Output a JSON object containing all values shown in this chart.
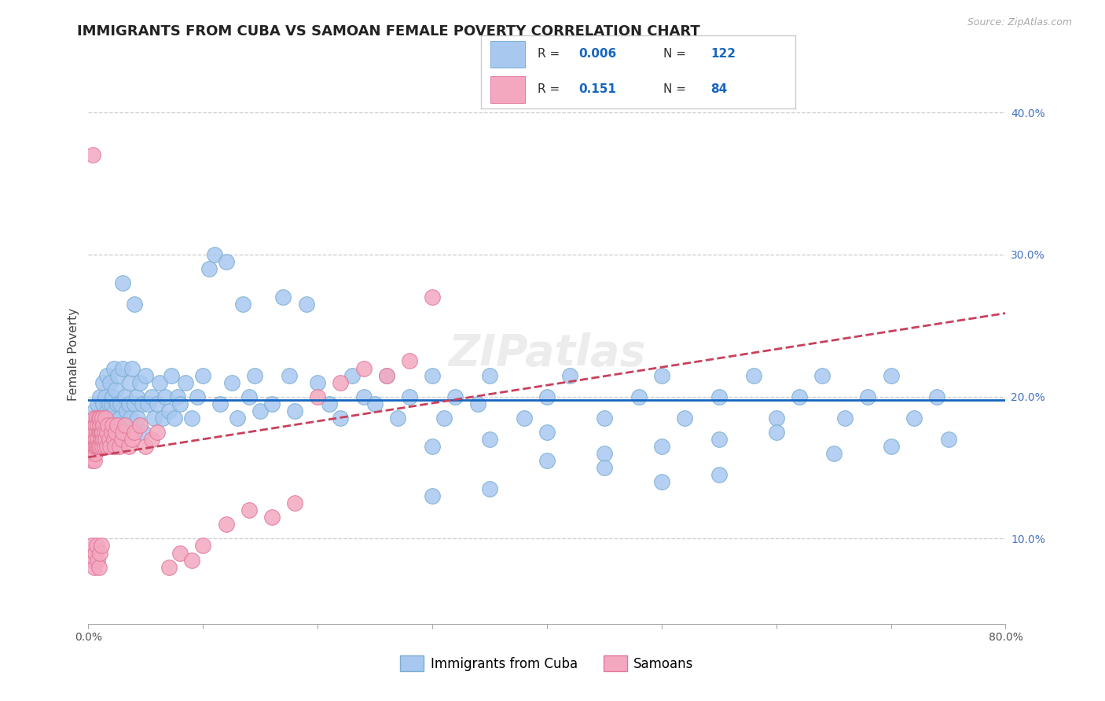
{
  "title": "IMMIGRANTS FROM CUBA VS SAMOAN FEMALE POVERTY CORRELATION CHART",
  "source_text": "Source: ZipAtlas.com",
  "ylabel": "Female Poverty",
  "xlim": [
    0.0,
    0.8
  ],
  "ylim": [
    0.04,
    0.42
  ],
  "xtick_vals": [
    0.0,
    0.1,
    0.2,
    0.3,
    0.4,
    0.5,
    0.6,
    0.7,
    0.8
  ],
  "xtick_labels": [
    "0.0%",
    "",
    "",
    "",
    "",
    "",
    "",
    "",
    "80.0%"
  ],
  "yticks_right": [
    0.1,
    0.2,
    0.3,
    0.4
  ],
  "ytick_right_labels": [
    "10.0%",
    "20.0%",
    "30.0%",
    "40.0%"
  ],
  "blue_dot_color": "#a8c8f0",
  "blue_dot_edge": "#7aaed0",
  "pink_dot_color": "#f4a8c0",
  "pink_dot_edge": "#e07898",
  "blue_trend_color": "#1565C0",
  "pink_trend_color": "#c8405c",
  "grid_color": "#cccccc",
  "title_color": "#222222",
  "title_fontsize": 13,
  "ylabel_fontsize": 11,
  "tick_fontsize": 10,
  "watermark": "ZIPatlas",
  "legend_r1": "0.006",
  "legend_n1": "122",
  "legend_r2": "0.151",
  "legend_n2": "84",
  "legend_label1": "Immigrants from Cuba",
  "legend_label2": "Samoans",
  "blue_x": [
    0.005,
    0.008,
    0.01,
    0.01,
    0.01,
    0.012,
    0.013,
    0.013,
    0.014,
    0.015,
    0.015,
    0.016,
    0.016,
    0.017,
    0.018,
    0.018,
    0.019,
    0.02,
    0.02,
    0.021,
    0.022,
    0.022,
    0.023,
    0.024,
    0.025,
    0.026,
    0.027,
    0.028,
    0.03,
    0.03,
    0.032,
    0.033,
    0.035,
    0.036,
    0.037,
    0.038,
    0.04,
    0.04,
    0.042,
    0.043,
    0.045,
    0.047,
    0.048,
    0.05,
    0.052,
    0.055,
    0.057,
    0.06,
    0.062,
    0.065,
    0.067,
    0.07,
    0.072,
    0.075,
    0.078,
    0.08,
    0.085,
    0.09,
    0.095,
    0.1,
    0.105,
    0.11,
    0.115,
    0.12,
    0.125,
    0.13,
    0.135,
    0.14,
    0.145,
    0.15,
    0.16,
    0.17,
    0.175,
    0.18,
    0.19,
    0.2,
    0.21,
    0.22,
    0.23,
    0.24,
    0.25,
    0.26,
    0.27,
    0.28,
    0.3,
    0.31,
    0.32,
    0.34,
    0.35,
    0.38,
    0.4,
    0.42,
    0.45,
    0.48,
    0.5,
    0.52,
    0.55,
    0.58,
    0.6,
    0.62,
    0.64,
    0.66,
    0.68,
    0.7,
    0.72,
    0.74,
    0.3,
    0.35,
    0.4,
    0.45,
    0.5,
    0.55,
    0.6,
    0.65,
    0.7,
    0.75,
    0.55,
    0.5,
    0.45,
    0.4,
    0.35,
    0.3
  ],
  "blue_y": [
    0.19,
    0.195,
    0.185,
    0.2,
    0.175,
    0.18,
    0.195,
    0.21,
    0.185,
    0.2,
    0.175,
    0.19,
    0.215,
    0.185,
    0.195,
    0.17,
    0.21,
    0.18,
    0.195,
    0.2,
    0.185,
    0.22,
    0.19,
    0.205,
    0.195,
    0.215,
    0.185,
    0.195,
    0.22,
    0.28,
    0.2,
    0.19,
    0.195,
    0.21,
    0.185,
    0.22,
    0.195,
    0.265,
    0.2,
    0.185,
    0.21,
    0.195,
    0.175,
    0.215,
    0.195,
    0.2,
    0.185,
    0.195,
    0.21,
    0.185,
    0.2,
    0.19,
    0.215,
    0.185,
    0.2,
    0.195,
    0.21,
    0.185,
    0.2,
    0.215,
    0.29,
    0.3,
    0.195,
    0.295,
    0.21,
    0.185,
    0.265,
    0.2,
    0.215,
    0.19,
    0.195,
    0.27,
    0.215,
    0.19,
    0.265,
    0.21,
    0.195,
    0.185,
    0.215,
    0.2,
    0.195,
    0.215,
    0.185,
    0.2,
    0.215,
    0.185,
    0.2,
    0.195,
    0.215,
    0.185,
    0.2,
    0.215,
    0.185,
    0.2,
    0.215,
    0.185,
    0.2,
    0.215,
    0.185,
    0.2,
    0.215,
    0.185,
    0.2,
    0.215,
    0.185,
    0.2,
    0.165,
    0.17,
    0.175,
    0.16,
    0.165,
    0.17,
    0.175,
    0.16,
    0.165,
    0.17,
    0.145,
    0.14,
    0.15,
    0.155,
    0.135,
    0.13
  ],
  "pink_x": [
    0.002,
    0.003,
    0.003,
    0.003,
    0.004,
    0.004,
    0.004,
    0.005,
    0.005,
    0.005,
    0.005,
    0.006,
    0.006,
    0.006,
    0.006,
    0.007,
    0.007,
    0.007,
    0.008,
    0.008,
    0.008,
    0.009,
    0.009,
    0.009,
    0.01,
    0.01,
    0.01,
    0.01,
    0.011,
    0.011,
    0.012,
    0.012,
    0.012,
    0.013,
    0.013,
    0.014,
    0.014,
    0.015,
    0.015,
    0.016,
    0.016,
    0.017,
    0.018,
    0.019,
    0.02,
    0.021,
    0.022,
    0.023,
    0.024,
    0.025,
    0.027,
    0.029,
    0.03,
    0.032,
    0.035,
    0.038,
    0.04,
    0.045,
    0.05,
    0.055,
    0.06,
    0.07,
    0.08,
    0.09,
    0.1,
    0.12,
    0.14,
    0.16,
    0.18,
    0.2,
    0.22,
    0.24,
    0.26,
    0.28,
    0.3,
    0.003,
    0.004,
    0.005,
    0.006,
    0.007,
    0.008,
    0.009,
    0.01,
    0.011
  ],
  "pink_y": [
    0.17,
    0.175,
    0.165,
    0.155,
    0.37,
    0.16,
    0.18,
    0.175,
    0.165,
    0.155,
    0.185,
    0.17,
    0.16,
    0.18,
    0.165,
    0.175,
    0.185,
    0.165,
    0.18,
    0.17,
    0.165,
    0.175,
    0.185,
    0.165,
    0.175,
    0.165,
    0.18,
    0.185,
    0.17,
    0.175,
    0.165,
    0.175,
    0.185,
    0.17,
    0.18,
    0.165,
    0.175,
    0.17,
    0.185,
    0.165,
    0.175,
    0.18,
    0.17,
    0.165,
    0.175,
    0.18,
    0.17,
    0.165,
    0.175,
    0.18,
    0.165,
    0.17,
    0.175,
    0.18,
    0.165,
    0.17,
    0.175,
    0.18,
    0.165,
    0.17,
    0.175,
    0.08,
    0.09,
    0.085,
    0.095,
    0.11,
    0.12,
    0.115,
    0.125,
    0.2,
    0.21,
    0.22,
    0.215,
    0.225,
    0.27,
    0.095,
    0.085,
    0.08,
    0.09,
    0.095,
    0.085,
    0.08,
    0.09,
    0.095
  ]
}
